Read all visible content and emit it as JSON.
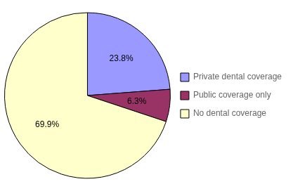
{
  "chart_data": {
    "type": "pie",
    "categories": [
      "Private dental coverage",
      "Public coverage only",
      "No dental coverage"
    ],
    "values": [
      23.8,
      6.3,
      69.9
    ],
    "value_labels": [
      "23.8%",
      "6.3%",
      "69.9%"
    ],
    "colors": [
      "#9999FF",
      "#993366",
      "#FFFFCC"
    ],
    "data_labels": true,
    "legend": "right"
  }
}
